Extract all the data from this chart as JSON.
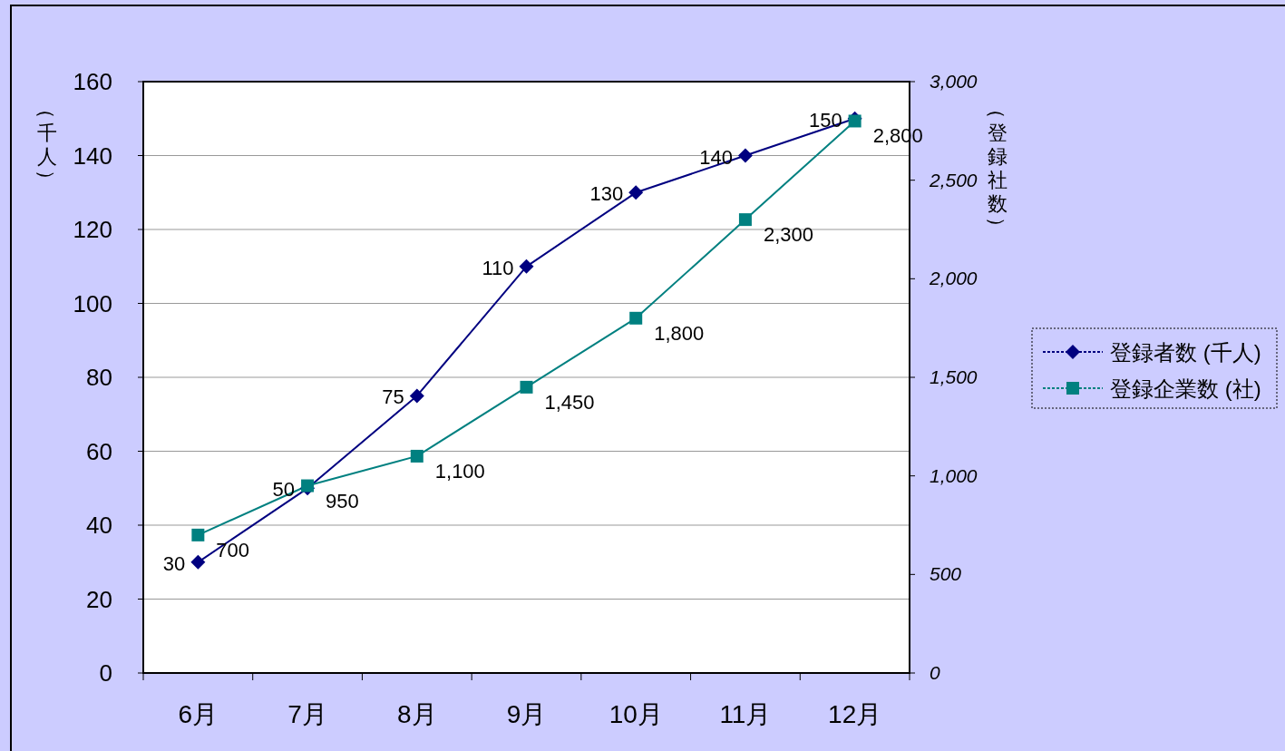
{
  "chart_data": {
    "type": "line",
    "ylabel": "（千人）",
    "y2label": "（登録社数）",
    "categories": [
      "6月",
      "7月",
      "8月",
      "9月",
      "10月",
      "11月",
      "12月"
    ],
    "series": [
      {
        "name": "登録者数 (千人)",
        "color": "#000080",
        "marker": "diamond",
        "values": [
          30,
          50,
          75,
          110,
          130,
          140,
          150
        ]
      },
      {
        "name": "登録企業数 (社)",
        "color": "#008080",
        "marker": "square",
        "axis": "y2",
        "values": [
          700,
          950,
          1100,
          1450,
          1800,
          2300,
          2800
        ],
        "value_labels": [
          "700",
          "950",
          "1,100",
          "1,450",
          "1,800",
          "2,300",
          "2,800"
        ]
      }
    ],
    "ylim": [
      0,
      160
    ],
    "yticks": [
      0,
      20,
      40,
      60,
      80,
      100,
      120,
      140,
      160
    ],
    "y2lim": [
      0,
      3000
    ],
    "y2ticks": [
      0,
      500,
      {
        "value": 1000,
        "label": "1,000"
      },
      {
        "value": 1500,
        "label": "1,500"
      },
      {
        "value": 2000,
        "label": "2,000"
      },
      {
        "value": 2500,
        "label": "2,500"
      },
      {
        "value": 3000,
        "label": "3,000"
      }
    ],
    "grid": "y",
    "legend": "right",
    "data_labels": true,
    "line_style": "solid"
  }
}
